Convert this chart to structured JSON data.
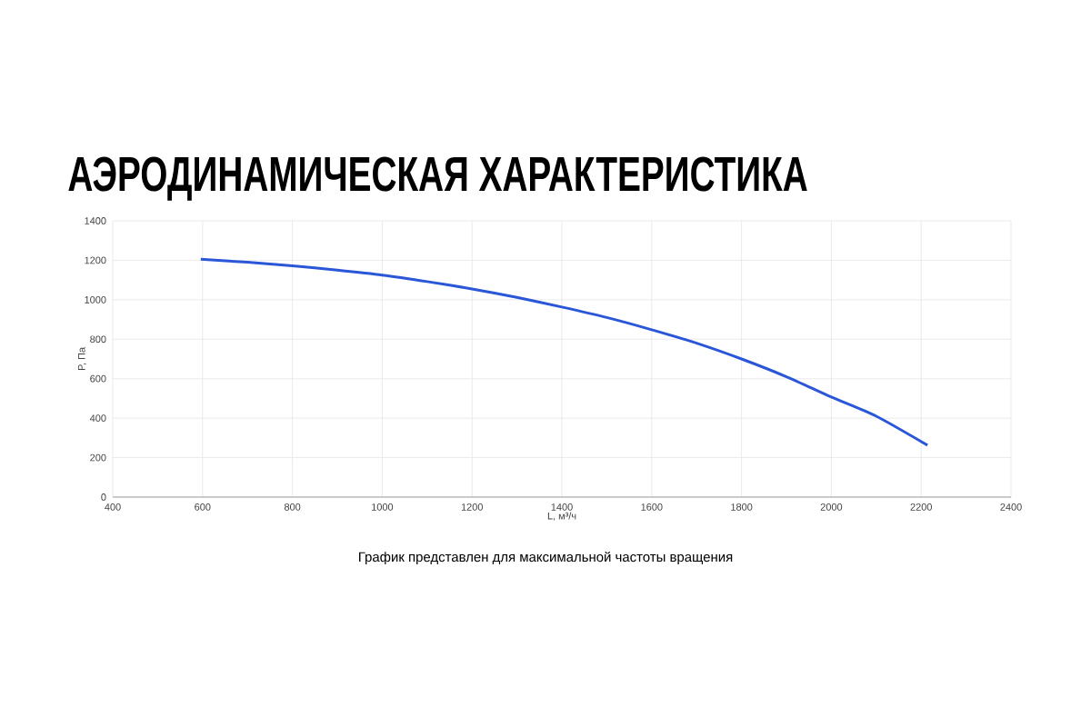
{
  "chart_data": {
    "type": "line",
    "title": "АЭРОДИНАМИЧЕСКАЯ ХАРАКТЕРИСТИКА",
    "xlabel": "L, м³/ч",
    "ylabel": "P, Па",
    "annotations": [
      "График представлен для максимальной частоты вращения"
    ],
    "x": [
      596,
      700,
      800,
      900,
      1000,
      1100,
      1200,
      1300,
      1400,
      1500,
      1600,
      1700,
      1800,
      1900,
      2000,
      2100,
      2214
    ],
    "series": [
      {
        "color": "#2a56d8",
        "values": [
          1205,
          1190,
          1172,
          1150,
          1125,
          1092,
          1055,
          1012,
          963,
          910,
          848,
          780,
          700,
          610,
          507,
          410,
          263
        ]
      }
    ],
    "xlim": [
      400,
      2400
    ],
    "ylim": [
      0,
      1400
    ],
    "xticks": [
      400,
      600,
      800,
      1000,
      1200,
      1400,
      1600,
      1800,
      2000,
      2200,
      2400
    ],
    "yticks": [
      0,
      200,
      400,
      600,
      800,
      1000,
      1200,
      1400
    ],
    "grid": true,
    "marker": "none",
    "line_style": "solid"
  }
}
